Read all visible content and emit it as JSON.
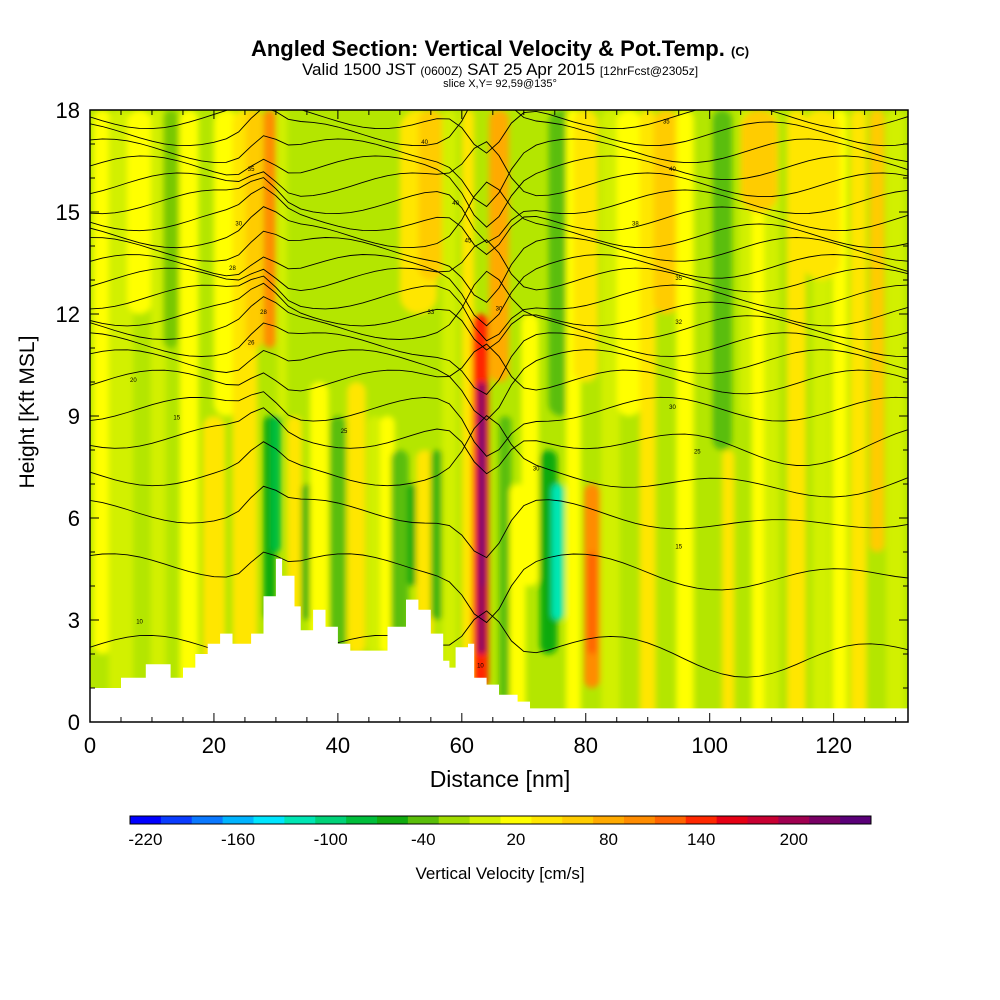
{
  "header": {
    "title": "Angled Section: Vertical Velocity & Pot.Temp.",
    "title_tag": "(C)",
    "valid_prefix": "Valid 1500 JST",
    "valid_z": "(0600Z)",
    "valid_date": "SAT 25 Apr 2015",
    "forecast": "[12hrFcst@2305z]",
    "slice": "slice X,Y= 92,59@135°"
  },
  "chart_data": {
    "type": "heatmap",
    "xlabel": "Distance [nm]",
    "ylabel": "Height [Kft MSL]",
    "xlim": [
      0,
      132
    ],
    "ylim": [
      0,
      18
    ],
    "x_ticks": [
      "0",
      "20",
      "40",
      "60",
      "80",
      "100",
      "120"
    ],
    "y_ticks": [
      "0",
      "3",
      "6",
      "9",
      "12",
      "15",
      "18"
    ],
    "colorbar": {
      "title": "Vertical Velocity [cm/s]",
      "tick_labels": [
        "-220",
        "-160",
        "-100",
        "-40",
        "20",
        "80",
        "140",
        "200"
      ],
      "colors": [
        "#0000ff",
        "#0a3cff",
        "#0a78ff",
        "#00b4ff",
        "#00e6ff",
        "#00e6b4",
        "#00d278",
        "#00be3c",
        "#10aa10",
        "#5abe0a",
        "#a0dc00",
        "#d2f000",
        "#ffff00",
        "#ffe600",
        "#ffcc00",
        "#ffaa00",
        "#ff8c00",
        "#ff6400",
        "#ff2800",
        "#e60014",
        "#c80032",
        "#a00050",
        "#780064",
        "#5a0078"
      ]
    },
    "terrain_kft": [
      [
        0,
        1
      ],
      [
        4,
        1
      ],
      [
        5,
        1.3
      ],
      [
        9,
        1.7
      ],
      [
        13,
        1.3
      ],
      [
        15,
        1.6
      ],
      [
        17,
        2
      ],
      [
        19,
        2.3
      ],
      [
        21,
        2.6
      ],
      [
        23,
        2.3
      ],
      [
        26,
        2.6
      ],
      [
        28,
        3.7
      ],
      [
        30,
        4.8
      ],
      [
        31,
        4.3
      ],
      [
        33,
        3.4
      ],
      [
        34,
        2.7
      ],
      [
        36,
        3.3
      ],
      [
        38,
        2.8
      ],
      [
        40,
        2.3
      ],
      [
        42,
        2.1
      ],
      [
        45,
        2.1
      ],
      [
        48,
        2.8
      ],
      [
        51,
        3.6
      ],
      [
        53,
        3.3
      ],
      [
        55,
        2.6
      ],
      [
        57,
        1.8
      ],
      [
        58,
        1.6
      ],
      [
        59,
        2.2
      ],
      [
        61,
        2.3
      ],
      [
        62,
        1.3
      ],
      [
        64,
        1.1
      ],
      [
        66,
        0.8
      ],
      [
        69,
        0.6
      ],
      [
        71,
        0.4
      ],
      [
        72,
        0.4
      ],
      [
        132,
        0.4
      ]
    ],
    "theta_labels": [
      {
        "text": "10",
        "x": 8,
        "y": 2.9
      },
      {
        "text": "15",
        "x": 14,
        "y": 8.9
      },
      {
        "text": "20",
        "x": 7,
        "y": 10.0
      },
      {
        "text": "25",
        "x": 41,
        "y": 8.5
      },
      {
        "text": "26",
        "x": 26,
        "y": 11.1
      },
      {
        "text": "28",
        "x": 28,
        "y": 12.0
      },
      {
        "text": "28",
        "x": 23,
        "y": 13.3
      },
      {
        "text": "30",
        "x": 24,
        "y": 14.6
      },
      {
        "text": "35",
        "x": 26,
        "y": 16.2
      },
      {
        "text": "40",
        "x": 54,
        "y": 17.0
      },
      {
        "text": "40",
        "x": 59,
        "y": 15.2
      },
      {
        "text": "45",
        "x": 61,
        "y": 14.1
      },
      {
        "text": "33",
        "x": 55,
        "y": 12.0
      },
      {
        "text": "30",
        "x": 66,
        "y": 12.1
      },
      {
        "text": "30",
        "x": 72,
        "y": 7.4
      },
      {
        "text": "35",
        "x": 93,
        "y": 17.6
      },
      {
        "text": "40",
        "x": 94,
        "y": 16.2
      },
      {
        "text": "38",
        "x": 88,
        "y": 14.6
      },
      {
        "text": "35",
        "x": 95,
        "y": 13.0
      },
      {
        "text": "32",
        "x": 95,
        "y": 11.7
      },
      {
        "text": "30",
        "x": 94,
        "y": 9.2
      },
      {
        "text": "25",
        "x": 98,
        "y": 7.9
      },
      {
        "text": "15",
        "x": 95,
        "y": 5.1
      },
      {
        "text": "10",
        "x": 63,
        "y": 1.6
      }
    ]
  }
}
